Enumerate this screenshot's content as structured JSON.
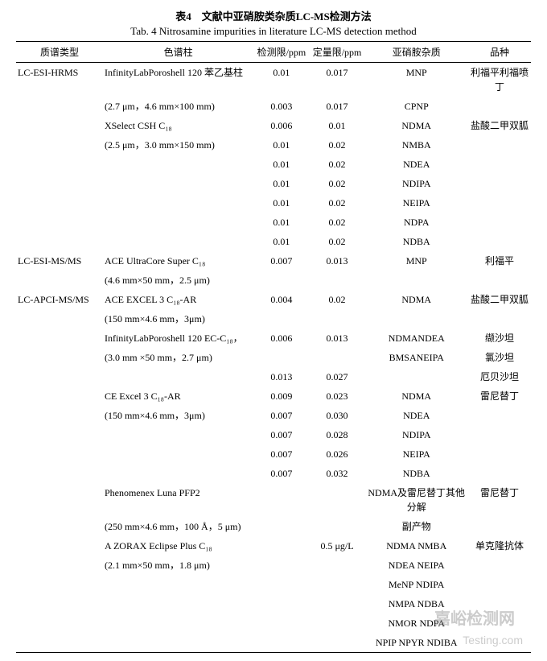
{
  "titles": {
    "cn": "表4　文献中亚硝胺类杂质LC-MS检测方法",
    "en": "Tab. 4 Nitrosamine impurities in literature LC-MS detection method"
  },
  "headers": {
    "c0": "质谱类型",
    "c1": "色谱柱",
    "c2": "检测限/ppm",
    "c3": "定量限/ppm",
    "c4": "亚硝胺杂质",
    "c5": "品种"
  },
  "rows": [
    {
      "c0": "LC-ESI-HRMS",
      "c1": "InfinityLabPoroshell 120 苯乙基柱",
      "c2": "0.01",
      "c3": "0.017",
      "c4": "MNP",
      "c5": "利福平利福喷丁"
    },
    {
      "c0": "",
      "c1": "(2.7 μm，4.6 mm×100 mm)",
      "c2": "0.003",
      "c3": "0.017",
      "c4": "CPNP",
      "c5": ""
    },
    {
      "c0": "",
      "c1": "XSelect CSH C₁₈",
      "c2": "0.006",
      "c3": "0.01",
      "c4": "NDMA",
      "c5": "盐酸二甲双胍"
    },
    {
      "c0": "",
      "c1": "(2.5 μm，3.0 mm×150 mm)",
      "c2": "0.01",
      "c3": "0.02",
      "c4": "NMBA",
      "c5": ""
    },
    {
      "c0": "",
      "c1": "",
      "c2": "0.01",
      "c3": "0.02",
      "c4": "NDEA",
      "c5": ""
    },
    {
      "c0": "",
      "c1": "",
      "c2": "0.01",
      "c3": "0.02",
      "c4": "NDIPA",
      "c5": ""
    },
    {
      "c0": "",
      "c1": "",
      "c2": "0.01",
      "c3": "0.02",
      "c4": "NEIPA",
      "c5": ""
    },
    {
      "c0": "",
      "c1": "",
      "c2": "0.01",
      "c3": "0.02",
      "c4": "NDPA",
      "c5": ""
    },
    {
      "c0": "",
      "c1": "",
      "c2": "0.01",
      "c3": "0.02",
      "c4": "NDBA",
      "c5": ""
    },
    {
      "c0": "LC-ESI-MS/MS",
      "c1": "ACE UltraCore Super C₁₈",
      "c2": "0.007",
      "c3": "0.013",
      "c4": "MNP",
      "c5": "利福平"
    },
    {
      "c0": "",
      "c1": "(4.6 mm×50 mm，2.5 μm)",
      "c2": "",
      "c3": "",
      "c4": "",
      "c5": ""
    },
    {
      "c0": "LC-APCI-MS/MS",
      "c1": "ACE EXCEL 3 C₁₈-AR",
      "c2": "0.004",
      "c3": "0.02",
      "c4": "NDMA",
      "c5": "盐酸二甲双胍"
    },
    {
      "c0": "",
      "c1": "(150 mm×4.6 mm，3μm)",
      "c2": "",
      "c3": "",
      "c4": "",
      "c5": ""
    },
    {
      "c0": "",
      "c1": "InfinityLabPoroshell 120 EC-C₁₈，",
      "c2": "0.006",
      "c3": "0.013",
      "c4": "NDMANDEA",
      "c5": "缬沙坦"
    },
    {
      "c0": "",
      "c1": "(3.0 mm ×50 mm，2.7 μm)",
      "c2": "",
      "c3": "",
      "c4": "BMSANEIPA",
      "c5": "氯沙坦"
    },
    {
      "c0": "",
      "c1": "",
      "c2": "0.013",
      "c3": "0.027",
      "c4": "",
      "c5": "厄贝沙坦"
    },
    {
      "c0": "",
      "c1": "CE Excel 3 C₁₈-AR",
      "c2": "0.009",
      "c3": "0.023",
      "c4": "NDMA",
      "c5": "雷尼替丁"
    },
    {
      "c0": "",
      "c1": "(150 mm×4.6 mm，3μm)",
      "c2": "0.007",
      "c3": "0.030",
      "c4": "NDEA",
      "c5": ""
    },
    {
      "c0": "",
      "c1": "",
      "c2": "0.007",
      "c3": "0.028",
      "c4": "NDIPA",
      "c5": ""
    },
    {
      "c0": "",
      "c1": "",
      "c2": "0.007",
      "c3": "0.026",
      "c4": "NEIPA",
      "c5": ""
    },
    {
      "c0": "",
      "c1": "",
      "c2": "0.007",
      "c3": "0.032",
      "c4": "NDBA",
      "c5": ""
    },
    {
      "c0": "",
      "c1": "Phenomenex Luna PFP2",
      "c2": "",
      "c3": "",
      "c4": "NDMA及雷尼替丁其他分解",
      "c5": "雷尼替丁"
    },
    {
      "c0": "",
      "c1": "(250 mm×4.6 mm，100 Å，5 μm)",
      "c2": "",
      "c3": "",
      "c4": "副产物",
      "c5": ""
    },
    {
      "c0": "",
      "c1": "A ZORAX Eclipse Plus C₁₈",
      "c2": "",
      "c3": "0.5 μg/L",
      "c4": "NDMA NMBA",
      "c5": "单克隆抗体"
    },
    {
      "c0": "",
      "c1": "(2.1 mm×50 mm，1.8 μm)",
      "c2": "",
      "c3": "",
      "c4": "NDEA NEIPA",
      "c5": ""
    },
    {
      "c0": "",
      "c1": "",
      "c2": "",
      "c3": "",
      "c4": "MeNP NDIPA",
      "c5": ""
    },
    {
      "c0": "",
      "c1": "",
      "c2": "",
      "c3": "",
      "c4": "NMPA NDBA",
      "c5": ""
    },
    {
      "c0": "",
      "c1": "",
      "c2": "",
      "c3": "",
      "c4": "NMOR NDPA",
      "c5": ""
    },
    {
      "c0": "",
      "c1": "",
      "c2": "",
      "c3": "",
      "c4": "NPIP NPYR NDIBA",
      "c5": ""
    }
  ],
  "watermark": {
    "line1": "嘉峪检测网",
    "line2": "Testing.com"
  }
}
